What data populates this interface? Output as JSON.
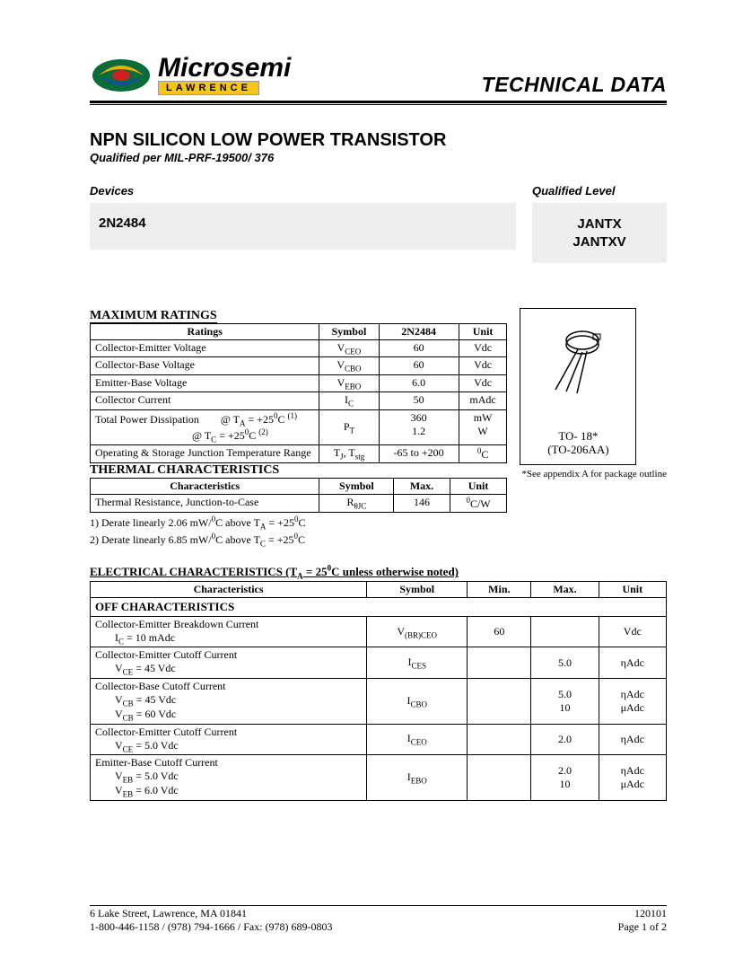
{
  "header": {
    "brand": "Microsemi",
    "sub_brand": "LAWRENCE",
    "tech_data": "TECHNICAL DATA"
  },
  "title": "NPN SILICON LOW POWER TRANSISTOR",
  "subtitle": "Qualified per MIL-PRF-19500/ 376",
  "devices_label": "Devices",
  "qualified_label": "Qualified Level",
  "device_name": "2N2484",
  "qual_levels": "JANTX\nJANTXV",
  "max_ratings_title": "MAXIMUM RATINGS",
  "ratings_cols": [
    "Ratings",
    "Symbol",
    "2N2484",
    "Unit"
  ],
  "ratings_rows": [
    {
      "name": "Collector-Emitter Voltage",
      "sym": "V",
      "sub": "CEO",
      "val": "60",
      "unit": "Vdc"
    },
    {
      "name": "Collector-Base Voltage",
      "sym": "V",
      "sub": "CBO",
      "val": "60",
      "unit": "Vdc"
    },
    {
      "name": "Emitter-Base Voltage",
      "sym": "V",
      "sub": "EBO",
      "val": "6.0",
      "unit": "Vdc"
    },
    {
      "name": "Collector Current",
      "sym": "I",
      "sub": "C",
      "val": "50",
      "unit": "mAdc"
    }
  ],
  "tpd_label": "Total Power Dissipation",
  "tpd_cond1_pre": "@ T",
  "tpd_cond1_sub": "A",
  "tpd_cond1_post": " = +25",
  "tpd_note1": "(1)",
  "tpd_cond2_pre": "@ T",
  "tpd_cond2_sub": "C",
  "tpd_cond2_post": " = +25",
  "tpd_note2": "(2)",
  "tpd_sym": "P",
  "tpd_sub": "T",
  "tpd_val1": "360",
  "tpd_val2": "1.2",
  "tpd_unit1": "mW",
  "tpd_unit2": "W",
  "opstg_label": "Operating & Storage Junction Temperature Range",
  "opstg_sym": "T",
  "opstg_sub1": "J",
  "opstg_sub2": "stg",
  "opstg_val": "-65 to +200",
  "opstg_unit": "C",
  "thermal_title": "THERMAL CHARACTERISTICS",
  "thermal_cols": [
    "Characteristics",
    "Symbol",
    "Max.",
    "Unit"
  ],
  "thermal_row": {
    "name": "Thermal Resistance, Junction-to-Case",
    "sym": "R",
    "sub": "θJC",
    "val": "146",
    "unit_pre": "0",
    "unit": "C/W"
  },
  "derate1": "1) Derate linearly 2.06 mW/",
  "derate1b": "C above T",
  "derate1c": " = +25",
  "derate2": "2) Derate linearly 6.85 mW/",
  "derate2b": "C above T",
  "derate2c": " = +25",
  "pkg_name1": "TO- 18*",
  "pkg_name2": "(TO-206AA)",
  "pkg_note": "*See appendix A for package outline",
  "elec_title_pre": "ELECTRICAL CHARACTERISTICS (T",
  "elec_title_sub": "A",
  "elec_title_mid": " = 25",
  "elec_title_post": "C unless otherwise noted)",
  "elec_cols": [
    "Characteristics",
    "Symbol",
    "Min.",
    "Max.",
    "Unit"
  ],
  "off_title": "OFF CHARACTERISTICS",
  "elec_rows": [
    {
      "name": "Collector-Emitter Breakdown Current",
      "conds": [
        "I|C| = 10 mAdc"
      ],
      "sym": "V",
      "sub": "(BR)CEO",
      "min": "60",
      "max": "",
      "unit": "Vdc"
    },
    {
      "name": "Collector-Emitter Cutoff Current",
      "conds": [
        "V|CE| = 45 Vdc"
      ],
      "sym": "I",
      "sub": "CES",
      "min": "",
      "max": "5.0",
      "unit": "ηAdc"
    },
    {
      "name": "Collector-Base Cutoff Current",
      "conds": [
        "V|CB| = 45 Vdc",
        "V|CB| = 60 Vdc"
      ],
      "sym": "I",
      "sub": "CBO",
      "min": "",
      "max": "5.0\n10",
      "unit": "ηAdc\nμAdc"
    },
    {
      "name": "Collector-Emitter Cutoff Current",
      "conds": [
        "V|CE| = 5.0 Vdc"
      ],
      "sym": "I",
      "sub": "CEO",
      "min": "",
      "max": "2.0",
      "unit": "ηAdc"
    },
    {
      "name": "Emitter-Base Cutoff Current",
      "conds": [
        "V|EB| = 5.0 Vdc",
        "V|EB| = 6.0 Vdc"
      ],
      "sym": "I",
      "sub": "EBO",
      "min": "",
      "max": "2.0\n10",
      "unit": "ηAdc\nμAdc"
    }
  ],
  "footer_addr": "6 Lake Street, Lawrence, MA  01841",
  "footer_date": "120101",
  "footer_phone": "1-800-446-1158 / (978) 794-1666 / Fax: (978) 689-0803",
  "footer_page": "Page 1 of 2"
}
